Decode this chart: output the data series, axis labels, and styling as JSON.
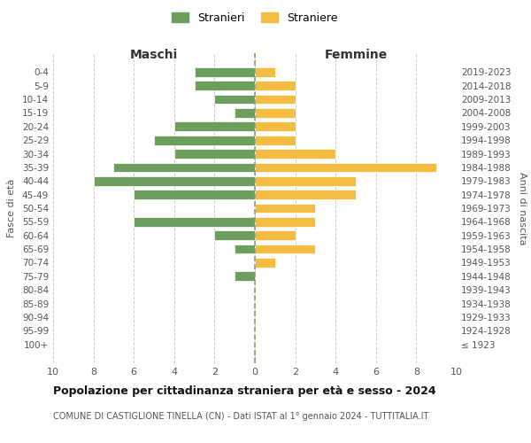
{
  "age_groups": [
    "100+",
    "95-99",
    "90-94",
    "85-89",
    "80-84",
    "75-79",
    "70-74",
    "65-69",
    "60-64",
    "55-59",
    "50-54",
    "45-49",
    "40-44",
    "35-39",
    "30-34",
    "25-29",
    "20-24",
    "15-19",
    "10-14",
    "5-9",
    "0-4"
  ],
  "birth_years": [
    "≤ 1923",
    "1924-1928",
    "1929-1933",
    "1934-1938",
    "1939-1943",
    "1944-1948",
    "1949-1953",
    "1954-1958",
    "1959-1963",
    "1964-1968",
    "1969-1973",
    "1974-1978",
    "1979-1983",
    "1984-1988",
    "1989-1993",
    "1994-1998",
    "1999-2003",
    "2004-2008",
    "2009-2013",
    "2014-2018",
    "2019-2023"
  ],
  "males": [
    0,
    0,
    0,
    0,
    0,
    1,
    0,
    1,
    2,
    6,
    0,
    6,
    8,
    7,
    4,
    5,
    4,
    1,
    2,
    3,
    3
  ],
  "females": [
    0,
    0,
    0,
    0,
    0,
    0,
    1,
    3,
    2,
    3,
    3,
    5,
    5,
    9,
    4,
    2,
    2,
    2,
    2,
    2,
    1
  ],
  "male_color": "#6e9e5e",
  "female_color": "#f5bc42",
  "background_color": "#ffffff",
  "grid_color": "#cccccc",
  "title": "Popolazione per cittadinanza straniera per età e sesso - 2024",
  "subtitle": "COMUNE DI CASTIGLIONE TINELLA (CN) - Dati ISTAT al 1° gennaio 2024 - TUTTITALIA.IT",
  "xlabel_left": "Maschi",
  "xlabel_right": "Femmine",
  "ylabel_left": "Fasce di età",
  "ylabel_right": "Anni di nascita",
  "legend_male": "Stranieri",
  "legend_female": "Straniere",
  "xlim": 10,
  "xticks": [
    0,
    2,
    4,
    6,
    8,
    10
  ],
  "dashed_line_color": "#999966"
}
